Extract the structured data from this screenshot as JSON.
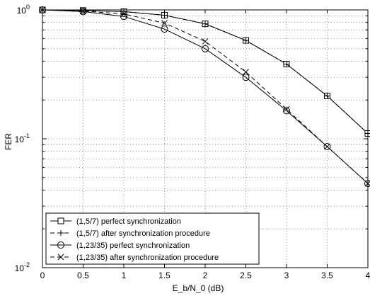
{
  "chart_data": {
    "type": "line",
    "xlabel": "E_b/N_0 (dB)",
    "ylabel": "FER",
    "xlim": [
      0,
      4
    ],
    "ylim": [
      0.01,
      1
    ],
    "yscale": "log",
    "grid": "dotted, major and minor",
    "x_ticks": [
      "0",
      "0.5",
      "1",
      "1.5",
      "2",
      "2.5",
      "3",
      "3.5",
      "4"
    ],
    "y_ticks": [
      {
        "base": "10",
        "exp": "-2"
      },
      {
        "base": "10",
        "exp": "-1"
      },
      {
        "base": "10",
        "exp": "0"
      }
    ],
    "legend_position": "bottom-left",
    "series": [
      {
        "name": "(1,5/7) perfect synchronization",
        "marker": "square",
        "line": "solid",
        "x": [
          0,
          0.5,
          1,
          1.5,
          2,
          2.5,
          3,
          3.5,
          4
        ],
        "y": [
          1.0,
          0.99,
          0.97,
          0.91,
          0.78,
          0.58,
          0.38,
          0.215,
          0.11
        ]
      },
      {
        "name": "(1,5/7) after synchronization procedure",
        "marker": "plus",
        "line": "dashed",
        "x": [
          0,
          0.5,
          1,
          1.5,
          2,
          2.5,
          3,
          3.5,
          4
        ],
        "y": [
          1.0,
          0.99,
          0.97,
          0.91,
          0.78,
          0.58,
          0.38,
          0.215,
          0.11
        ]
      },
      {
        "name": "(1,23/35) perfect synchronization",
        "marker": "circle",
        "line": "solid",
        "x": [
          0,
          0.5,
          1,
          1.5,
          2,
          2.5,
          3,
          3.5,
          4
        ],
        "y": [
          1.0,
          0.97,
          0.89,
          0.71,
          0.5,
          0.3,
          0.165,
          0.087,
          0.045
        ]
      },
      {
        "name": "(1,23/35) after synchronization procedure",
        "marker": "x",
        "line": "dashed",
        "x": [
          0,
          0.5,
          1,
          1.5,
          2,
          2.5,
          3,
          3.5,
          4
        ],
        "y": [
          1.0,
          0.98,
          0.93,
          0.79,
          0.57,
          0.33,
          0.17,
          0.087,
          0.045
        ]
      }
    ]
  }
}
